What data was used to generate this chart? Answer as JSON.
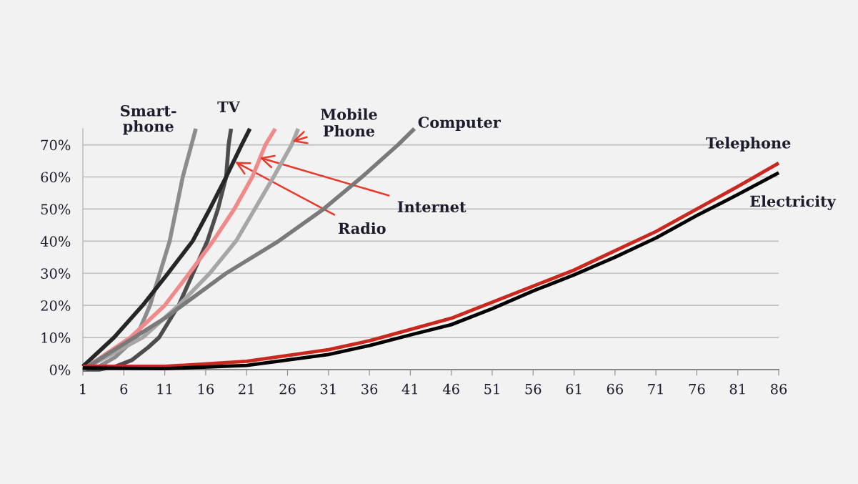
{
  "chart_data": {
    "type": "line",
    "xlim": [
      1,
      86
    ],
    "ylim": [
      0,
      75
    ],
    "xticks": [
      1,
      6,
      11,
      16,
      21,
      26,
      31,
      36,
      41,
      46,
      51,
      56,
      61,
      66,
      71,
      76,
      81,
      86
    ],
    "yticks": [
      {
        "value": 0,
        "label": "0%"
      },
      {
        "value": 10,
        "label": "10%"
      },
      {
        "value": 20,
        "label": "20%"
      },
      {
        "value": 30,
        "label": "30%"
      },
      {
        "value": 40,
        "label": "40%"
      },
      {
        "value": 50,
        "label": "50%"
      },
      {
        "value": 60,
        "label": "60%"
      },
      {
        "value": 70,
        "label": "70%"
      }
    ],
    "grid": "y",
    "marker": "none",
    "line_style": "solid",
    "series": [
      {
        "name": "Smart-\nphone",
        "color": "#8c8c8c",
        "x": [
          1,
          3,
          5,
          7.5,
          9.2,
          11.6,
          13.2,
          14.8
        ],
        "values": [
          0,
          1,
          4,
          10,
          20,
          40,
          60,
          75
        ]
      },
      {
        "name": "TV",
        "color": "#4d4d4d",
        "x": [
          1,
          3,
          5,
          7,
          9,
          10.3,
          12.7,
          16.2,
          17.5,
          18.5,
          18.8,
          19.1
        ],
        "values": [
          0,
          0,
          1,
          3,
          7,
          10,
          20,
          40,
          50,
          60,
          70,
          75
        ]
      },
      {
        "name": "Radio",
        "color": "#262626",
        "x": [
          1,
          4.8,
          8.3,
          11.4,
          14.4,
          16.5,
          18.5,
          20.4,
          21.4
        ],
        "values": [
          1,
          10,
          20,
          30,
          40,
          50,
          60,
          70,
          75
        ]
      },
      {
        "name": "Internet",
        "color": "#f08a8a",
        "x": [
          1,
          6.8,
          11,
          14,
          16.9,
          19.5,
          21.7,
          23.3,
          24.5
        ],
        "values": [
          0,
          10,
          20,
          30,
          40,
          50,
          60,
          70,
          75
        ]
      },
      {
        "name": "Mobile\nPhone",
        "color": "#a6a6a6",
        "x": [
          1,
          8.3,
          12.7,
          16.5,
          19.7,
          22,
          24.3,
          26.5,
          27.3
        ],
        "values": [
          0,
          10,
          20,
          30,
          40,
          50,
          60,
          70,
          75
        ]
      },
      {
        "name": "Computer",
        "color": "#7a7a7a",
        "x": [
          1,
          6,
          11,
          18.5,
          24.9,
          30.4,
          35.1,
          39.5,
          41.5
        ],
        "values": [
          0,
          8,
          16,
          30,
          40,
          50,
          60,
          70,
          75
        ]
      },
      {
        "name": "Telephone",
        "color": "#c8281e",
        "x": [
          1,
          11,
          21,
          31,
          36,
          41,
          46,
          51,
          56,
          61,
          66,
          71,
          76,
          81,
          86
        ],
        "values": [
          1,
          1,
          2.6,
          6.2,
          9,
          12.5,
          16,
          21,
          26,
          31,
          37,
          43,
          50,
          57,
          64.3
        ]
      },
      {
        "name": "Electricity",
        "color": "#000000",
        "x": [
          1,
          11,
          21,
          31,
          36,
          41,
          46,
          51,
          56,
          61,
          66,
          71,
          76,
          81,
          86
        ],
        "values": [
          0.5,
          0.3,
          1.3,
          4.7,
          7.5,
          10.8,
          14,
          19,
          24.5,
          29.5,
          35,
          41,
          48,
          54.5,
          61.3
        ]
      }
    ]
  }
}
